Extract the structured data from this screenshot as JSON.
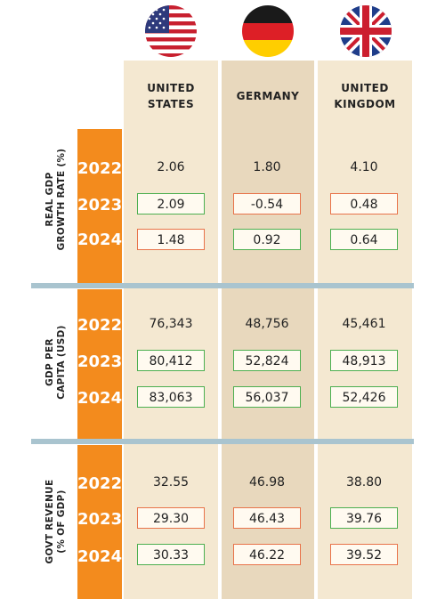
{
  "colors": {
    "orange": "#f38b1d",
    "increase_border": "#4caf50",
    "decrease_border": "#e8734a",
    "separator": "#a9c4cf"
  },
  "countries": [
    {
      "name_line1": "UNITED",
      "name_line2": "STATES",
      "flag": "us-flag-icon"
    },
    {
      "name_line1": "GERMANY",
      "name_line2": "",
      "flag": "germany-flag-icon"
    },
    {
      "name_line1": "UNITED",
      "name_line2": "KINGDOM",
      "flag": "uk-flag-icon"
    }
  ],
  "chart_data": {
    "type": "table",
    "columns": [
      "UNITED STATES",
      "GERMANY",
      "UNITED KINGDOM"
    ],
    "sections": [
      {
        "label_line1": "REAL GDP",
        "label_line2": "GROWTH RATE (%)",
        "rows": [
          {
            "year": "2022",
            "values": [
              "2.06",
              "1.80",
              "4.10"
            ],
            "change": [
              "none",
              "none",
              "none"
            ]
          },
          {
            "year": "2023",
            "values": [
              "2.09",
              "-0.54",
              "0.48"
            ],
            "change": [
              "up",
              "down",
              "down"
            ]
          },
          {
            "year": "2024",
            "values": [
              "1.48",
              "0.92",
              "0.64"
            ],
            "change": [
              "down",
              "up",
              "up"
            ]
          }
        ]
      },
      {
        "label_line1": "GDP PER",
        "label_line2": "CAPITA (USD)",
        "rows": [
          {
            "year": "2022",
            "values": [
              "76,343",
              "48,756",
              "45,461"
            ],
            "change": [
              "none",
              "none",
              "none"
            ]
          },
          {
            "year": "2023",
            "values": [
              "80,412",
              "52,824",
              "48,913"
            ],
            "change": [
              "up",
              "up",
              "up"
            ]
          },
          {
            "year": "2024",
            "values": [
              "83,063",
              "56,037",
              "52,426"
            ],
            "change": [
              "up",
              "up",
              "up"
            ]
          }
        ]
      },
      {
        "label_line1": "GOVT REVENUE",
        "label_line2": "(% OF GDP)",
        "rows": [
          {
            "year": "2022",
            "values": [
              "32.55",
              "46.98",
              "38.80"
            ],
            "change": [
              "none",
              "none",
              "none"
            ]
          },
          {
            "year": "2023",
            "values": [
              "29.30",
              "46.43",
              "39.76"
            ],
            "change": [
              "down",
              "down",
              "up"
            ]
          },
          {
            "year": "2024",
            "values": [
              "30.33",
              "46.22",
              "39.52"
            ],
            "change": [
              "up",
              "down",
              "down"
            ]
          }
        ]
      }
    ]
  }
}
